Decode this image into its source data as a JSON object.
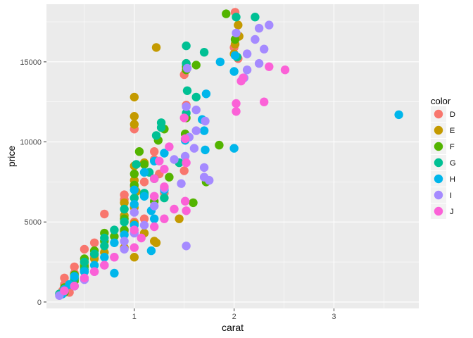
{
  "chart_data": {
    "type": "scatter",
    "title": "",
    "xlabel": "carat",
    "ylabel": "price",
    "xlim": [
      0.12,
      3.85
    ],
    "ylim": [
      -400,
      18600
    ],
    "xticks": [
      1,
      2,
      3
    ],
    "yticks": [
      0,
      5000,
      10000,
      15000
    ],
    "grid": true,
    "background": "#ebebeb",
    "gridline_color": "#ffffff",
    "legend": {
      "title": "color",
      "placement": "right",
      "entries": [
        {
          "label": "D",
          "color": "#F8766D"
        },
        {
          "label": "E",
          "color": "#C49A00"
        },
        {
          "label": "F",
          "color": "#53B400"
        },
        {
          "label": "G",
          "color": "#00C094"
        },
        {
          "label": "H",
          "color": "#00B6EB"
        },
        {
          "label": "I",
          "color": "#A58AFF"
        },
        {
          "label": "J",
          "color": "#FB61D7"
        }
      ]
    },
    "series": [
      {
        "name": "D",
        "points": [
          [
            2.01,
            18100
          ],
          [
            2.0,
            15900
          ],
          [
            2.04,
            15200
          ],
          [
            1.52,
            14900
          ],
          [
            1.5,
            14200
          ],
          [
            1.52,
            12300
          ],
          [
            1.0,
            10800
          ],
          [
            1.2,
            9400
          ],
          [
            1.2,
            8900
          ],
          [
            1.0,
            7200
          ],
          [
            0.9,
            6700
          ],
          [
            0.9,
            6400
          ],
          [
            0.7,
            5500
          ],
          [
            1.1,
            5200
          ],
          [
            1.0,
            5000
          ],
          [
            0.9,
            4400
          ],
          [
            0.6,
            3700
          ],
          [
            0.5,
            3300
          ],
          [
            0.6,
            2900
          ],
          [
            0.5,
            2500
          ],
          [
            0.4,
            2200
          ],
          [
            0.4,
            1800
          ],
          [
            0.3,
            1500
          ],
          [
            0.3,
            1100
          ],
          [
            0.3,
            900
          ],
          [
            0.28,
            700
          ],
          [
            0.35,
            600
          ],
          [
            1.3,
            6800
          ],
          [
            1.5,
            8200
          ],
          [
            1.25,
            8000
          ],
          [
            1.1,
            7500
          ]
        ]
      },
      {
        "name": "E",
        "points": [
          [
            2.04,
            17300
          ],
          [
            2.05,
            16600
          ],
          [
            2.01,
            16100
          ],
          [
            2.0,
            15500
          ],
          [
            1.22,
            15900
          ],
          [
            1.0,
            12800
          ],
          [
            1.0,
            11600
          ],
          [
            1.0,
            11100
          ],
          [
            1.0,
            8500
          ],
          [
            1.0,
            7600
          ],
          [
            1.02,
            6900
          ],
          [
            0.9,
            6200
          ],
          [
            1.0,
            5900
          ],
          [
            0.9,
            5400
          ],
          [
            1.0,
            4900
          ],
          [
            1.1,
            4300
          ],
          [
            1.2,
            3800
          ],
          [
            0.9,
            3400
          ],
          [
            1.0,
            2800
          ],
          [
            0.7,
            3100
          ],
          [
            0.6,
            2700
          ],
          [
            0.5,
            2300
          ],
          [
            0.5,
            1900
          ],
          [
            0.4,
            1400
          ],
          [
            0.4,
            1000
          ],
          [
            0.3,
            800
          ],
          [
            0.3,
            600
          ],
          [
            1.22,
            3700
          ],
          [
            1.52,
            10300
          ],
          [
            1.45,
            5200
          ],
          [
            1.1,
            8700
          ]
        ]
      },
      {
        "name": "F",
        "points": [
          [
            1.92,
            18000
          ],
          [
            2.01,
            16400
          ],
          [
            1.52,
            14700
          ],
          [
            1.52,
            14500
          ],
          [
            1.62,
            14800
          ],
          [
            1.52,
            11500
          ],
          [
            1.3,
            10800
          ],
          [
            1.24,
            10100
          ],
          [
            1.05,
            9400
          ],
          [
            1.1,
            8600
          ],
          [
            1.0,
            8000
          ],
          [
            1.0,
            7300
          ],
          [
            1.1,
            6700
          ],
          [
            1.2,
            6300
          ],
          [
            1.59,
            6200
          ],
          [
            0.9,
            5200
          ],
          [
            0.9,
            4500
          ],
          [
            0.8,
            4100
          ],
          [
            0.7,
            4300
          ],
          [
            0.7,
            3800
          ],
          [
            0.6,
            3200
          ],
          [
            0.5,
            2700
          ],
          [
            0.5,
            2200
          ],
          [
            0.4,
            1700
          ],
          [
            0.4,
            1300
          ],
          [
            0.3,
            900
          ],
          [
            0.3,
            600
          ],
          [
            1.51,
            10500
          ],
          [
            1.72,
            7500
          ],
          [
            1.85,
            9800
          ],
          [
            1.35,
            7800
          ]
        ]
      },
      {
        "name": "G",
        "points": [
          [
            2.21,
            17800
          ],
          [
            2.02,
            17800
          ],
          [
            2.03,
            15300
          ],
          [
            1.52,
            16000
          ],
          [
            1.7,
            15600
          ],
          [
            1.53,
            13200
          ],
          [
            1.52,
            11800
          ],
          [
            1.27,
            11200
          ],
          [
            1.27,
            10900
          ],
          [
            1.22,
            10400
          ],
          [
            1.02,
            8600
          ],
          [
            1.15,
            8100
          ],
          [
            1.2,
            7700
          ],
          [
            1.1,
            6800
          ],
          [
            1.0,
            6500
          ],
          [
            0.9,
            5800
          ],
          [
            0.9,
            5000
          ],
          [
            0.8,
            4500
          ],
          [
            0.7,
            4000
          ],
          [
            0.7,
            3500
          ],
          [
            0.6,
            3000
          ],
          [
            0.5,
            2500
          ],
          [
            0.5,
            2000
          ],
          [
            0.4,
            1500
          ],
          [
            0.4,
            1000
          ],
          [
            0.3,
            700
          ],
          [
            0.25,
            500
          ],
          [
            1.52,
            14900
          ],
          [
            1.62,
            12800
          ],
          [
            1.45,
            8700
          ],
          [
            1.3,
            6500
          ]
        ]
      },
      {
        "name": "H",
        "points": [
          [
            3.65,
            11700
          ],
          [
            2.01,
            15400
          ],
          [
            1.72,
            13000
          ],
          [
            1.86,
            15000
          ],
          [
            2.0,
            14400
          ],
          [
            2.0,
            9600
          ],
          [
            1.68,
            11400
          ],
          [
            1.7,
            10700
          ],
          [
            1.51,
            10100
          ],
          [
            1.3,
            9300
          ],
          [
            1.2,
            8800
          ],
          [
            1.1,
            8100
          ],
          [
            1.0,
            7000
          ],
          [
            1.0,
            6100
          ],
          [
            1.17,
            5700
          ],
          [
            1.0,
            4800
          ],
          [
            1.2,
            5200
          ],
          [
            0.9,
            4200
          ],
          [
            0.8,
            3700
          ],
          [
            1.17,
            3200
          ],
          [
            0.7,
            2800
          ],
          [
            0.6,
            2300
          ],
          [
            0.5,
            1900
          ],
          [
            0.4,
            1600
          ],
          [
            0.35,
            1100
          ],
          [
            0.3,
            800
          ],
          [
            0.28,
            500
          ],
          [
            1.71,
            9500
          ],
          [
            1.3,
            7000
          ],
          [
            1.1,
            6600
          ],
          [
            0.8,
            1800
          ]
        ]
      },
      {
        "name": "I",
        "points": [
          [
            2.35,
            17300
          ],
          [
            2.25,
            17100
          ],
          [
            2.02,
            16800
          ],
          [
            2.21,
            16400
          ],
          [
            2.3,
            15800
          ],
          [
            2.13,
            15500
          ],
          [
            2.25,
            14900
          ],
          [
            2.13,
            14500
          ],
          [
            1.53,
            14600
          ],
          [
            2.1,
            14000
          ],
          [
            1.62,
            12000
          ],
          [
            1.52,
            12200
          ],
          [
            1.71,
            11300
          ],
          [
            1.62,
            10700
          ],
          [
            1.55,
            10300
          ],
          [
            1.6,
            9600
          ],
          [
            1.51,
            9100
          ],
          [
            1.7,
            8400
          ],
          [
            1.7,
            7800
          ],
          [
            1.47,
            7400
          ],
          [
            1.3,
            7100
          ],
          [
            1.2,
            6600
          ],
          [
            1.2,
            6000
          ],
          [
            1.0,
            5600
          ],
          [
            1.1,
            4800
          ],
          [
            1.0,
            4300
          ],
          [
            0.9,
            3800
          ],
          [
            0.9,
            3300
          ],
          [
            0.8,
            2800
          ],
          [
            0.7,
            2300
          ],
          [
            0.6,
            1900
          ],
          [
            0.5,
            1400
          ],
          [
            0.4,
            1000
          ],
          [
            0.3,
            700
          ],
          [
            0.25,
            400
          ],
          [
            1.52,
            3500
          ],
          [
            1.75,
            7600
          ],
          [
            1.4,
            8900
          ]
        ]
      },
      {
        "name": "J",
        "points": [
          [
            2.51,
            14500
          ],
          [
            2.35,
            14700
          ],
          [
            2.09,
            14000
          ],
          [
            2.07,
            13800
          ],
          [
            2.3,
            12500
          ],
          [
            2.02,
            12400
          ],
          [
            2.02,
            11900
          ],
          [
            1.5,
            11500
          ],
          [
            1.51,
            10200
          ],
          [
            1.35,
            9700
          ],
          [
            1.25,
            8800
          ],
          [
            1.3,
            8300
          ],
          [
            1.2,
            7700
          ],
          [
            1.3,
            7200
          ],
          [
            1.2,
            6600
          ],
          [
            1.51,
            6300
          ],
          [
            1.52,
            5700
          ],
          [
            1.3,
            5200
          ],
          [
            1.0,
            4500
          ],
          [
            1.07,
            4000
          ],
          [
            1.0,
            3400
          ],
          [
            0.8,
            2800
          ],
          [
            0.7,
            2300
          ],
          [
            0.6,
            1900
          ],
          [
            0.5,
            1500
          ],
          [
            0.4,
            1000
          ],
          [
            0.3,
            700
          ],
          [
            1.52,
            8700
          ],
          [
            1.4,
            5800
          ],
          [
            1.2,
            4700
          ]
        ]
      }
    ]
  }
}
